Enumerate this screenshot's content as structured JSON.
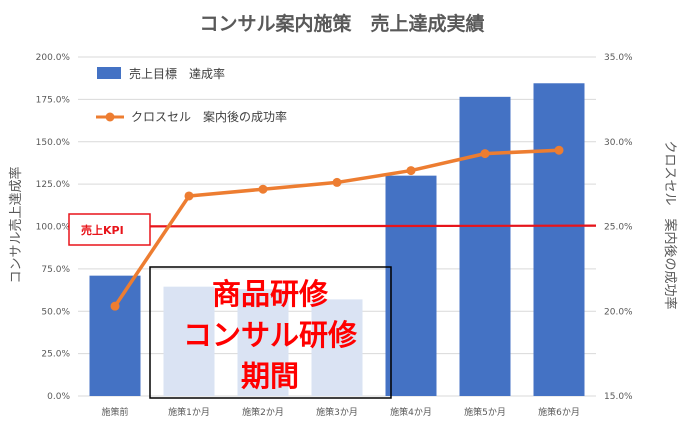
{
  "chart_data": {
    "type": "bar",
    "title": "コンサル案内施策　売上達成実績",
    "categories": [
      "施策前",
      "施策1か月",
      "施策2か月",
      "施策3か月",
      "施策4か月",
      "施策5か月",
      "施策6か月"
    ],
    "series": [
      {
        "name": "売上目標　達成率",
        "type": "bar",
        "axis": "left",
        "values": [
          0.71,
          0.645,
          0.63,
          0.57,
          1.3,
          1.765,
          1.845
        ],
        "highlight": [
          false,
          true,
          true,
          true,
          false,
          false,
          false
        ],
        "color": "#4472c4",
        "highlight_color": "#dae3f3"
      },
      {
        "name": "クロスセル　案内後の成功率",
        "type": "line",
        "axis": "right",
        "values": [
          0.203,
          0.268,
          0.272,
          0.276,
          0.283,
          0.293,
          0.295
        ],
        "color": "#ed7d31"
      }
    ],
    "ylabel": "コンサル売上達成率",
    "y2label": "クロスセル　案内後の成功率",
    "ylim": [
      0,
      2.0
    ],
    "y_ticks": [
      "0.0%",
      "25.0%",
      "50.0%",
      "75.0%",
      "100.0%",
      "125.0%",
      "150.0%",
      "175.0%",
      "200.0%"
    ],
    "y2lim": [
      0.15,
      0.35
    ],
    "y2_ticks": [
      "15.0%",
      "20.0%",
      "25.0%",
      "30.0%",
      "35.0%"
    ],
    "kpi": {
      "label": "売上KPI",
      "value": 1.0,
      "value_end": 1.005,
      "color": "#e8141a"
    },
    "annotation": {
      "lines": [
        "商品研修",
        "コンサル研修",
        "期間"
      ],
      "color": "#ff0000"
    },
    "legend": "top-left",
    "grid": true
  }
}
